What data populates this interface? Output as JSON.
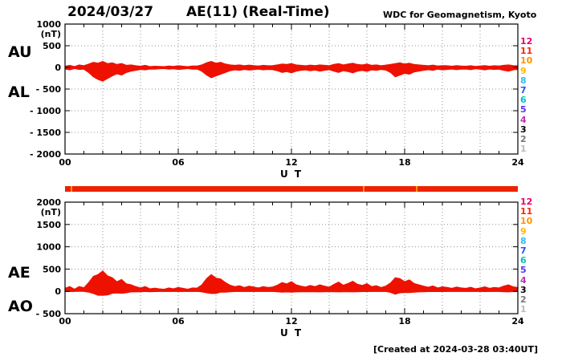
{
  "header": {
    "date": "2024/03/27",
    "title": "AE(11) (Real-Time)",
    "credit": "WDC for Geomagnetism, Kyoto"
  },
  "footer": {
    "created_at": "[Created at 2024-03-28 03:40UT]"
  },
  "panel_labels": {
    "top_upper": "AU",
    "top_lower": "AL",
    "bottom_upper": "AE",
    "bottom_lower": "AO"
  },
  "station_legend": {
    "labels": [
      "12",
      "11",
      "10",
      "9",
      "8",
      "7",
      "6",
      "5",
      "4",
      "3",
      "2",
      "1"
    ],
    "colors": [
      "#e50068",
      "#ff2600",
      "#ff9300",
      "#ffb800",
      "#33bbee",
      "#2255ee",
      "#00c2c2",
      "#5533ff",
      "#bb33bb",
      "#000000",
      "#777777",
      "#bbbbbb"
    ]
  },
  "station_bar": {
    "color": "#ee2200",
    "marker_color": "#ff9300",
    "marker_hours": [
      0.3,
      15.8,
      18.6
    ]
  },
  "chart_data": [
    {
      "type": "area",
      "name": "AU / AL panel",
      "ylabel": "(nT)",
      "xlabel": "U T",
      "xlim": [
        0,
        24
      ],
      "ylim": [
        -2000,
        1000
      ],
      "yticks": [
        1000,
        500,
        0,
        -500,
        -1000,
        -1500,
        -2000
      ],
      "xticks": [
        0,
        6,
        12,
        18,
        24
      ],
      "xtick_labels": [
        "00",
        "06",
        "12",
        "18",
        "24"
      ],
      "x_start": 0,
      "x_step": 0.25,
      "series_color": "#ee1100",
      "grid": "dotted",
      "series": [
        {
          "name": "AU",
          "values": [
            30,
            50,
            20,
            60,
            40,
            80,
            120,
            100,
            140,
            90,
            110,
            70,
            90,
            50,
            60,
            40,
            30,
            50,
            20,
            30,
            25,
            20,
            35,
            25,
            40,
            30,
            20,
            35,
            35,
            60,
            110,
            140,
            100,
            120,
            80,
            60,
            50,
            60,
            40,
            55,
            45,
            35,
            50,
            40,
            45,
            60,
            80,
            70,
            90,
            60,
            50,
            40,
            55,
            45,
            60,
            50,
            40,
            70,
            90,
            60,
            80,
            100,
            70,
            60,
            80,
            50,
            60,
            40,
            55,
            70,
            90,
            110,
            80,
            100,
            70,
            60,
            50,
            40,
            55,
            35,
            45,
            40,
            30,
            45,
            35,
            30,
            40,
            25,
            35,
            45,
            30,
            40,
            35,
            50,
            60,
            45,
            40
          ]
        },
        {
          "name": "AL",
          "values": [
            -40,
            -60,
            -30,
            -50,
            -45,
            -120,
            -220,
            -280,
            -320,
            -260,
            -200,
            -150,
            -180,
            -120,
            -90,
            -70,
            -50,
            -60,
            -40,
            -45,
            -35,
            -30,
            -45,
            -35,
            -50,
            -40,
            -30,
            -45,
            -40,
            -90,
            -180,
            -240,
            -200,
            -160,
            -120,
            -80,
            -60,
            -70,
            -50,
            -65,
            -55,
            -45,
            -60,
            -50,
            -55,
            -80,
            -120,
            -100,
            -130,
            -90,
            -70,
            -60,
            -80,
            -65,
            -90,
            -70,
            -55,
            -90,
            -120,
            -80,
            -100,
            -130,
            -90,
            -75,
            -95,
            -60,
            -70,
            -50,
            -65,
            -120,
            -220,
            -180,
            -140,
            -160,
            -110,
            -90,
            -70,
            -55,
            -70,
            -45,
            -60,
            -50,
            -40,
            -55,
            -45,
            -40,
            -55,
            -35,
            -45,
            -60,
            -40,
            -50,
            -45,
            -70,
            -90,
            -60,
            -50
          ]
        }
      ]
    },
    {
      "type": "area",
      "name": "AE / AO panel",
      "ylabel": "(nT)",
      "xlabel": "U T",
      "xlim": [
        0,
        24
      ],
      "ylim": [
        -500,
        2000
      ],
      "yticks": [
        2000,
        1500,
        1000,
        500,
        0,
        -500
      ],
      "xticks": [
        0,
        6,
        12,
        18,
        24
      ],
      "xtick_labels": [
        "00",
        "06",
        "12",
        "18",
        "24"
      ],
      "x_start": 0,
      "x_step": 0.25,
      "series_color": "#ee1100",
      "grid": "dotted",
      "series": [
        {
          "name": "AE",
          "values": [
            70,
            110,
            50,
            110,
            85,
            200,
            340,
            380,
            460,
            350,
            310,
            220,
            270,
            170,
            150,
            110,
            80,
            110,
            60,
            75,
            60,
            50,
            80,
            60,
            90,
            70,
            50,
            80,
            75,
            150,
            290,
            380,
            300,
            280,
            200,
            140,
            110,
            130,
            90,
            120,
            100,
            80,
            110,
            90,
            100,
            140,
            200,
            170,
            220,
            150,
            120,
            100,
            135,
            110,
            150,
            120,
            95,
            160,
            210,
            140,
            180,
            230,
            160,
            135,
            175,
            110,
            130,
            90,
            120,
            190,
            310,
            290,
            220,
            260,
            180,
            150,
            120,
            95,
            125,
            80,
            105,
            90,
            70,
            100,
            80,
            70,
            95,
            60,
            80,
            105,
            70,
            90,
            80,
            120,
            150,
            105,
            90
          ]
        },
        {
          "name": "AO",
          "values": [
            -5,
            -5,
            -5,
            5,
            -3,
            -20,
            -50,
            -90,
            -90,
            -85,
            -45,
            -40,
            -45,
            -35,
            -15,
            -15,
            -10,
            -5,
            -10,
            -8,
            -5,
            -5,
            -5,
            -5,
            -5,
            -5,
            -5,
            -5,
            -3,
            -15,
            -35,
            -50,
            -50,
            -20,
            -20,
            -10,
            -5,
            -5,
            -5,
            -5,
            -5,
            -5,
            -5,
            -5,
            -5,
            -10,
            -20,
            -15,
            -20,
            -15,
            -10,
            -10,
            -13,
            -10,
            -15,
            -10,
            -8,
            -10,
            -15,
            -10,
            -10,
            -15,
            -10,
            -8,
            -8,
            -5,
            -5,
            -5,
            -5,
            -25,
            -65,
            -35,
            -30,
            -30,
            -20,
            -15,
            -10,
            -8,
            -8,
            -5,
            -8,
            -5,
            -5,
            -5,
            -5,
            -5,
            -5,
            -5,
            -5,
            -8,
            -5,
            -5,
            -5,
            -10,
            -15,
            -8,
            -5
          ]
        }
      ]
    }
  ]
}
